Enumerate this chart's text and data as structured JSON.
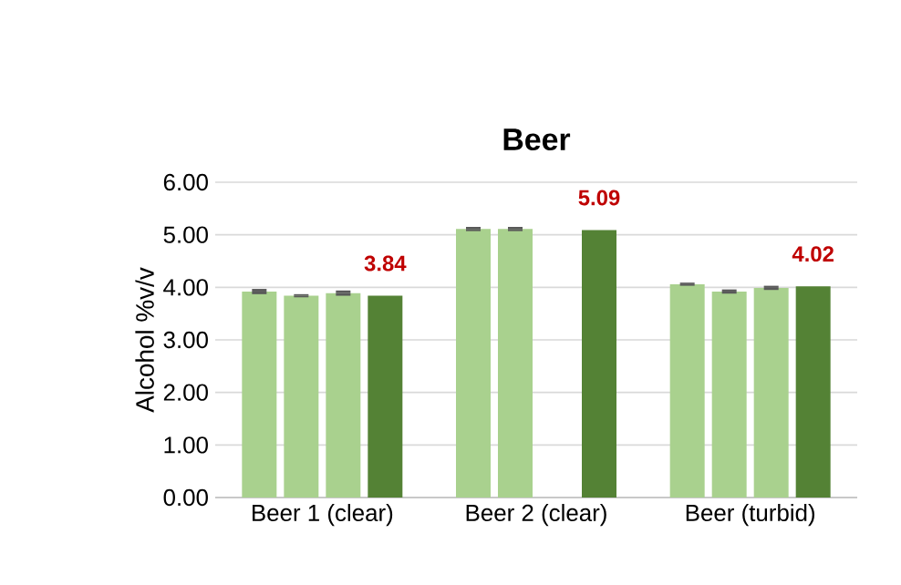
{
  "chart_data": {
    "type": "bar",
    "title": "Beer",
    "ylabel": "Alcohol %v/v",
    "categories": [
      "Beer 1 (clear)",
      "Beer 2 (clear)",
      "Beer (turbid)"
    ],
    "series": [
      {
        "color": "#a9d18e",
        "values": [
          3.92,
          5.11,
          4.06
        ],
        "errors": [
          0.05,
          0.04,
          0.03
        ]
      },
      {
        "color": "#a9d18e",
        "values": [
          3.84,
          5.11,
          3.92
        ],
        "errors": [
          0.03,
          0.04,
          0.04
        ]
      },
      {
        "color": "#a9d18e",
        "values": [
          3.89,
          null,
          3.99
        ],
        "errors": [
          0.05,
          null,
          0.04
        ]
      },
      {
        "color": "#548235",
        "values": [
          3.84,
          5.09,
          4.02
        ],
        "value_labels": [
          "3.84",
          "5.09",
          "4.02"
        ]
      }
    ],
    "ylim": [
      0,
      6
    ],
    "yticks": [
      {
        "value": 0,
        "label": "0.00"
      },
      {
        "value": 1,
        "label": "1.00"
      },
      {
        "value": 2,
        "label": "2.00"
      },
      {
        "value": 3,
        "label": "3.00"
      },
      {
        "value": 4,
        "label": "4.00"
      },
      {
        "value": 5,
        "label": "5.00"
      },
      {
        "value": 6,
        "label": "6.00"
      }
    ],
    "grid": "y"
  }
}
